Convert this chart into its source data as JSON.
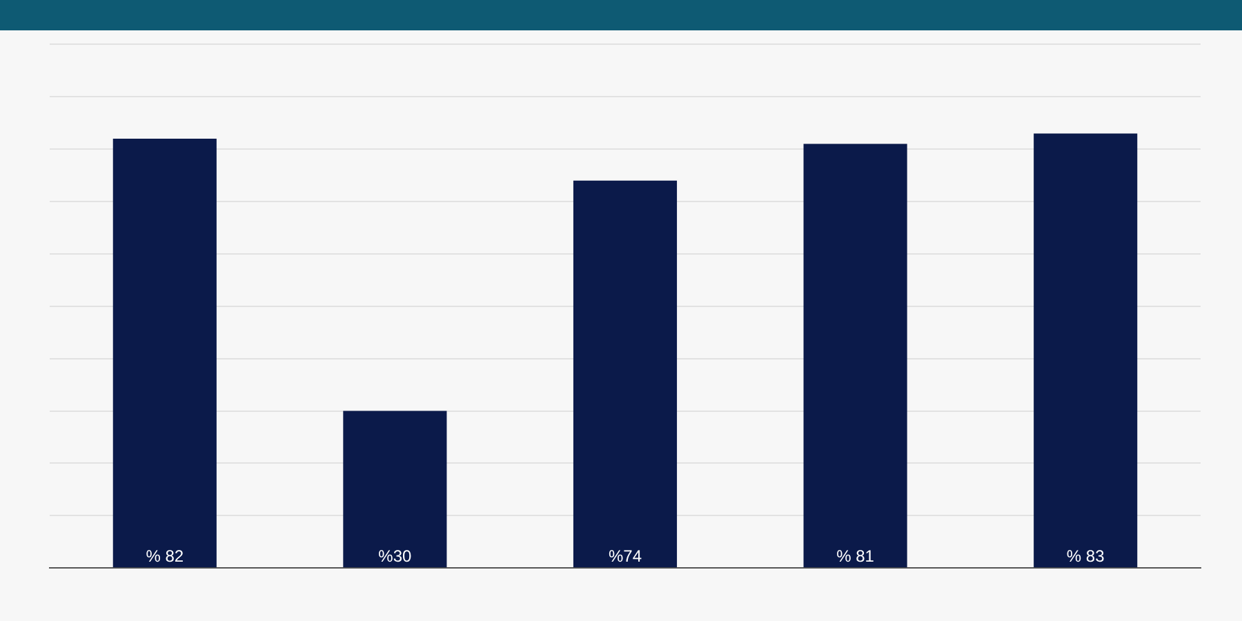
{
  "chart_data": {
    "type": "bar",
    "categories": [
      null,
      null,
      null,
      null,
      null
    ],
    "values": [
      82,
      30,
      74,
      81,
      83
    ],
    "color": "#0b1a4a",
    "value_labels": [
      "% 82",
      "%30",
      "%74",
      "% 81",
      "% 83"
    ],
    "ylim": [
      0,
      100
    ],
    "yticks": [
      {
        "value": 0,
        "label": null
      },
      {
        "value": 10,
        "label": null
      },
      {
        "value": 20,
        "label": null
      },
      {
        "value": 30,
        "label": null
      },
      {
        "value": 40,
        "label": null
      },
      {
        "value": 50,
        "label": null
      },
      {
        "value": 60,
        "label": null
      },
      {
        "value": 70,
        "label": null
      },
      {
        "value": 80,
        "label": null
      },
      {
        "value": 90,
        "label": null
      },
      {
        "value": 100,
        "label": null
      }
    ],
    "grid": "y"
  }
}
